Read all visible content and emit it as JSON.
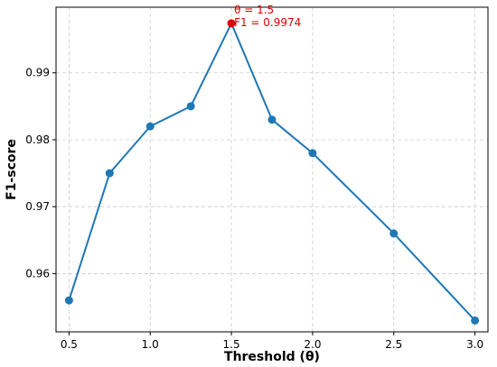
{
  "chart_data": {
    "type": "line",
    "xlabel": "Threshold (θ)",
    "ylabel": "F1-score",
    "xlim": [
      0.42,
      3.08
    ],
    "ylim": [
      0.9513,
      0.9998
    ],
    "x_ticks": [
      0.5,
      1.0,
      1.5,
      2.0,
      2.5,
      3.0
    ],
    "x_tick_labels": [
      "0.5",
      "1.0",
      "1.5",
      "2.0",
      "2.5",
      "3.0"
    ],
    "y_ticks": [
      0.96,
      0.97,
      0.98,
      0.99
    ],
    "y_tick_labels": [
      "0.96",
      "0.97",
      "0.98",
      "0.99"
    ],
    "grid": true,
    "series": [
      {
        "color": "#1f77b4",
        "x": [
          0.5,
          0.75,
          1.0,
          1.25,
          1.5,
          1.75,
          2.0,
          2.5,
          3.0
        ],
        "y": [
          0.956,
          0.975,
          0.982,
          0.985,
          0.9974,
          0.983,
          0.978,
          0.966,
          0.953
        ]
      }
    ],
    "highlight": {
      "x": 1.5,
      "y": 0.9974,
      "color": "#e00000",
      "label_line1": "θ = 1.5",
      "label_line2": "F1 = 0.9974"
    }
  }
}
